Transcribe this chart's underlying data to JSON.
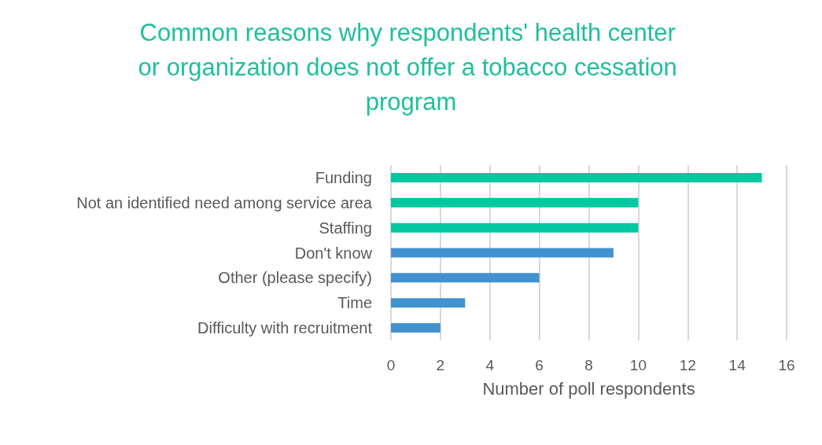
{
  "chart_data": {
    "type": "bar",
    "orientation": "horizontal",
    "title": "Common reasons why respondents' health center or organization does not offer a tobacco cessation program",
    "xlabel": "Number of poll respondents",
    "categories": [
      "Funding",
      "Not an identified need among service area",
      "Staffing",
      "Don't know",
      "Other (please specify)",
      "Time",
      "Difficulty with recruitment"
    ],
    "values": [
      15,
      10,
      10,
      9,
      6,
      3,
      2
    ],
    "colors": [
      "#00c8a0",
      "#00c8a0",
      "#00c8a0",
      "#4392d0",
      "#4392d0",
      "#4392d0",
      "#4392d0"
    ],
    "xlim": [
      0,
      16
    ],
    "xticks": [
      0,
      2,
      4,
      6,
      8,
      10,
      12,
      14,
      16
    ],
    "grid": "x"
  }
}
